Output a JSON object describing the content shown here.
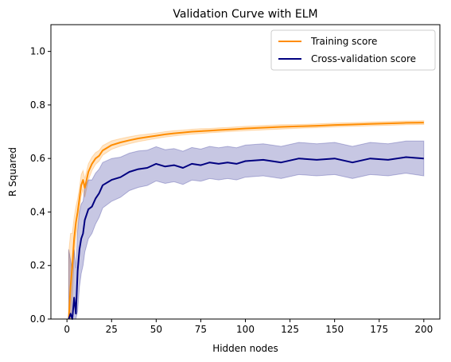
{
  "chart_data": {
    "type": "line",
    "title": "Validation Curve with ELM",
    "xlabel": "Hidden nodes",
    "ylabel": "R Squared",
    "xlim": [
      -9,
      209
    ],
    "ylim": [
      0.0,
      1.1
    ],
    "xticks": [
      "0",
      "25",
      "50",
      "75",
      "100",
      "125",
      "150",
      "175",
      "200"
    ],
    "yticks": [
      "0.0",
      "0.2",
      "0.4",
      "0.6",
      "0.8",
      "1.0"
    ],
    "grid": false,
    "legend_position": "upper right",
    "series": [
      {
        "name": "Training score",
        "color": "#ff8c00",
        "x": [
          1,
          2,
          3,
          4,
          5,
          6,
          7,
          8,
          9,
          10,
          12,
          14,
          16,
          18,
          20,
          25,
          30,
          35,
          40,
          45,
          50,
          55,
          60,
          65,
          70,
          75,
          80,
          85,
          90,
          95,
          100,
          110,
          120,
          130,
          140,
          150,
          160,
          170,
          180,
          190,
          200
        ],
        "y": [
          0.0,
          0.12,
          0.2,
          0.3,
          0.36,
          0.4,
          0.45,
          0.5,
          0.52,
          0.49,
          0.55,
          0.58,
          0.6,
          0.61,
          0.63,
          0.65,
          0.66,
          0.668,
          0.675,
          0.68,
          0.685,
          0.69,
          0.694,
          0.697,
          0.7,
          0.702,
          0.704,
          0.706,
          0.708,
          0.71,
          0.712,
          0.715,
          0.718,
          0.72,
          0.722,
          0.725,
          0.727,
          0.729,
          0.731,
          0.733,
          0.734
        ],
        "band_halfwidth": [
          0.25,
          0.2,
          0.12,
          0.08,
          0.06,
          0.05,
          0.04,
          0.04,
          0.035,
          0.035,
          0.03,
          0.025,
          0.022,
          0.02,
          0.018,
          0.016,
          0.014,
          0.013,
          0.012,
          0.011,
          0.01,
          0.01,
          0.01,
          0.009,
          0.009,
          0.009,
          0.008,
          0.008,
          0.008,
          0.008,
          0.008,
          0.008,
          0.008,
          0.007,
          0.007,
          0.007,
          0.007,
          0.007,
          0.007,
          0.007,
          0.007
        ]
      },
      {
        "name": "Cross-validation score",
        "color": "#000080",
        "x": [
          1,
          2,
          3,
          4,
          5,
          6,
          7,
          8,
          9,
          10,
          12,
          14,
          16,
          18,
          20,
          25,
          30,
          35,
          40,
          45,
          50,
          55,
          60,
          65,
          70,
          75,
          80,
          85,
          90,
          95,
          100,
          110,
          120,
          130,
          140,
          150,
          160,
          170,
          180,
          190,
          200
        ],
        "y": [
          0.0,
          0.02,
          0.0,
          0.08,
          0.02,
          0.18,
          0.26,
          0.3,
          0.32,
          0.37,
          0.41,
          0.42,
          0.45,
          0.47,
          0.5,
          0.52,
          0.53,
          0.55,
          0.56,
          0.565,
          0.58,
          0.57,
          0.575,
          0.565,
          0.58,
          0.575,
          0.585,
          0.58,
          0.585,
          0.58,
          0.59,
          0.595,
          0.585,
          0.6,
          0.595,
          0.6,
          0.585,
          0.6,
          0.595,
          0.605,
          0.6
        ],
        "band_halfwidth": [
          0.26,
          0.2,
          0.18,
          0.18,
          0.17,
          0.15,
          0.14,
          0.13,
          0.12,
          0.12,
          0.11,
          0.1,
          0.095,
          0.09,
          0.085,
          0.08,
          0.075,
          0.07,
          0.068,
          0.066,
          0.064,
          0.063,
          0.062,
          0.062,
          0.061,
          0.06,
          0.06,
          0.06,
          0.06,
          0.06,
          0.06,
          0.06,
          0.06,
          0.06,
          0.06,
          0.06,
          0.06,
          0.06,
          0.06,
          0.06,
          0.065
        ]
      }
    ]
  }
}
